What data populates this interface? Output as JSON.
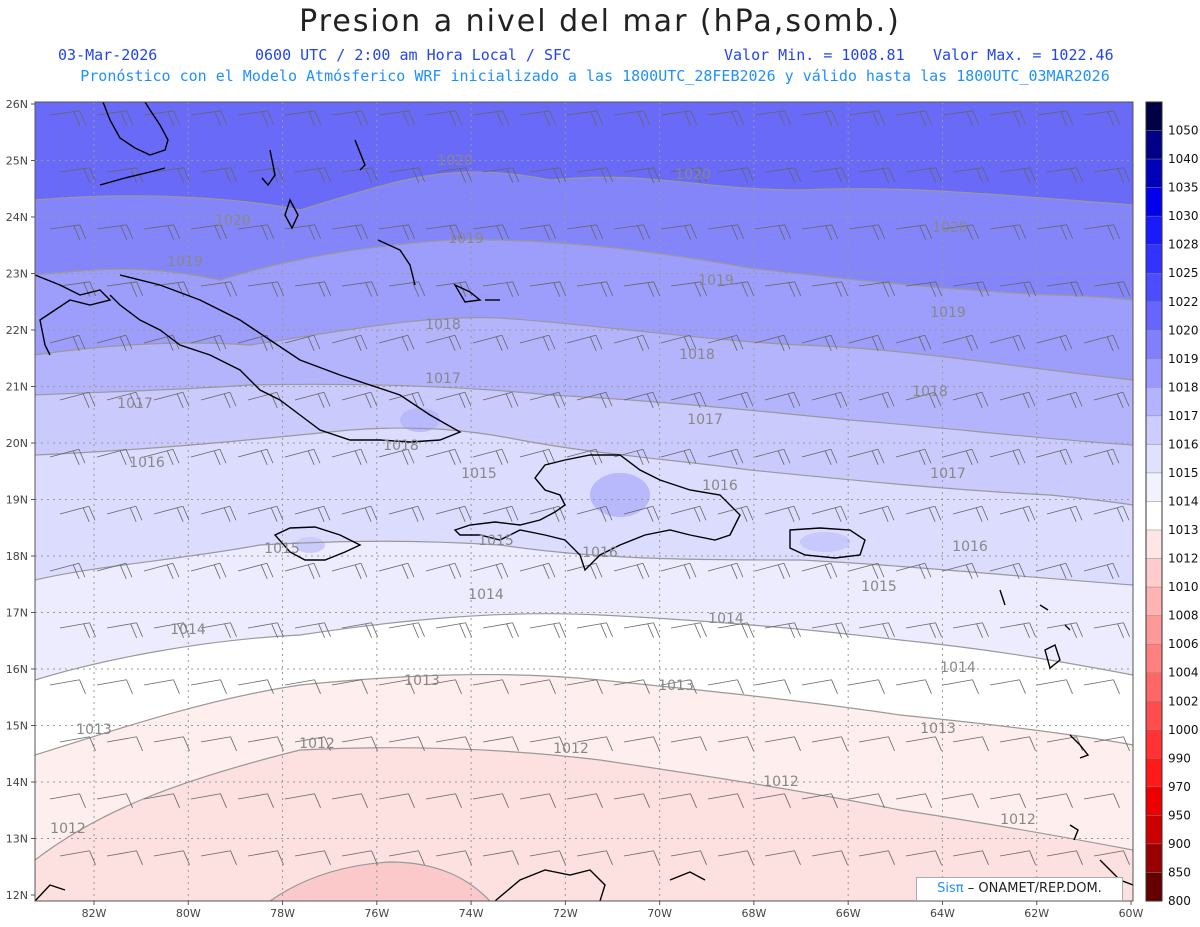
{
  "header": {
    "title": "Presion a nivel del mar (hPa,somb.)",
    "date": "03-Mar-2026",
    "time": "0600 UTC / 2:00 am Hora Local / SFC",
    "min_label": "Valor Min. = 1008.81",
    "max_label": "Valor Max. = 1022.46",
    "model_line": "Pronóstico con el Modelo Atmósferico WRF inicializado a las 1800UTC_28FEB2026 y válido hasta las  1800UTC_03MAR2026"
  },
  "axes": {
    "lat_labels": [
      "26N",
      "25N",
      "24N",
      "23N",
      "22N",
      "21N",
      "20N",
      "19N",
      "18N",
      "17N",
      "16N",
      "15N",
      "14N",
      "13N",
      "12N"
    ],
    "lon_labels": [
      "82W",
      "80W",
      "78W",
      "76W",
      "74W",
      "72W",
      "70W",
      "68W",
      "66W",
      "64W",
      "62W",
      "60W"
    ]
  },
  "colorbar": {
    "levels": [
      "1050",
      "1040",
      "1035",
      "1030",
      "1028",
      "1025",
      "1022",
      "1020",
      "1019",
      "1018",
      "1017",
      "1016",
      "1015",
      "1014",
      "1013",
      "1012",
      "1010",
      "1008",
      "1006",
      "1004",
      "1002",
      "1000",
      "990",
      "970",
      "950",
      "900",
      "850",
      "800"
    ],
    "colors": [
      "#000044",
      "#000088",
      "#0000bb",
      "#0000ee",
      "#1a1aff",
      "#3333ff",
      "#4d4dff",
      "#6666ff",
      "#8080ff",
      "#9999ff",
      "#b3b3ff",
      "#ccccff",
      "#e0e0ff",
      "#f2f2ff",
      "#ffffff",
      "#ffe6e6",
      "#ffcccc",
      "#ffb3b3",
      "#ff9999",
      "#ff8080",
      "#ff6666",
      "#ff4d4d",
      "#ff3333",
      "#ff1a1a",
      "#ee0000",
      "#cc0000",
      "#990000",
      "#660000"
    ]
  },
  "isobars": [
    {
      "value": "1020",
      "labels": [
        [
          455,
          165
        ],
        [
          693,
          179
        ],
        [
          233,
          225
        ],
        [
          950,
          232
        ]
      ]
    },
    {
      "value": "1019",
      "labels": [
        [
          185,
          266
        ],
        [
          466,
          243
        ],
        [
          716,
          285
        ],
        [
          948,
          317
        ]
      ]
    },
    {
      "value": "1018",
      "labels": [
        [
          443,
          329
        ],
        [
          697,
          359
        ],
        [
          930,
          396
        ],
        [
          401,
          450
        ]
      ]
    },
    {
      "value": "1017",
      "labels": [
        [
          135,
          408
        ],
        [
          443,
          383
        ],
        [
          705,
          424
        ],
        [
          948,
          478
        ]
      ]
    },
    {
      "value": "1016",
      "labels": [
        [
          147,
          467
        ],
        [
          720,
          490
        ],
        [
          600,
          557
        ],
        [
          970,
          551
        ]
      ]
    },
    {
      "value": "1015",
      "labels": [
        [
          479,
          478
        ],
        [
          282,
          553
        ],
        [
          496,
          545
        ],
        [
          879,
          591
        ]
      ]
    },
    {
      "value": "1014",
      "labels": [
        [
          188,
          634
        ],
        [
          486,
          599
        ],
        [
          726,
          623
        ],
        [
          958,
          672
        ]
      ]
    },
    {
      "value": "1013",
      "labels": [
        [
          422,
          685
        ],
        [
          676,
          690
        ],
        [
          94,
          734
        ],
        [
          938,
          733
        ]
      ]
    },
    {
      "value": "1012",
      "labels": [
        [
          317,
          748
        ],
        [
          571,
          753
        ],
        [
          781,
          786
        ],
        [
          68,
          833
        ],
        [
          1018,
          824
        ]
      ]
    }
  ],
  "credit": {
    "logo": "Sisπ",
    "text": "– ONAMET/REP.DOM."
  }
}
